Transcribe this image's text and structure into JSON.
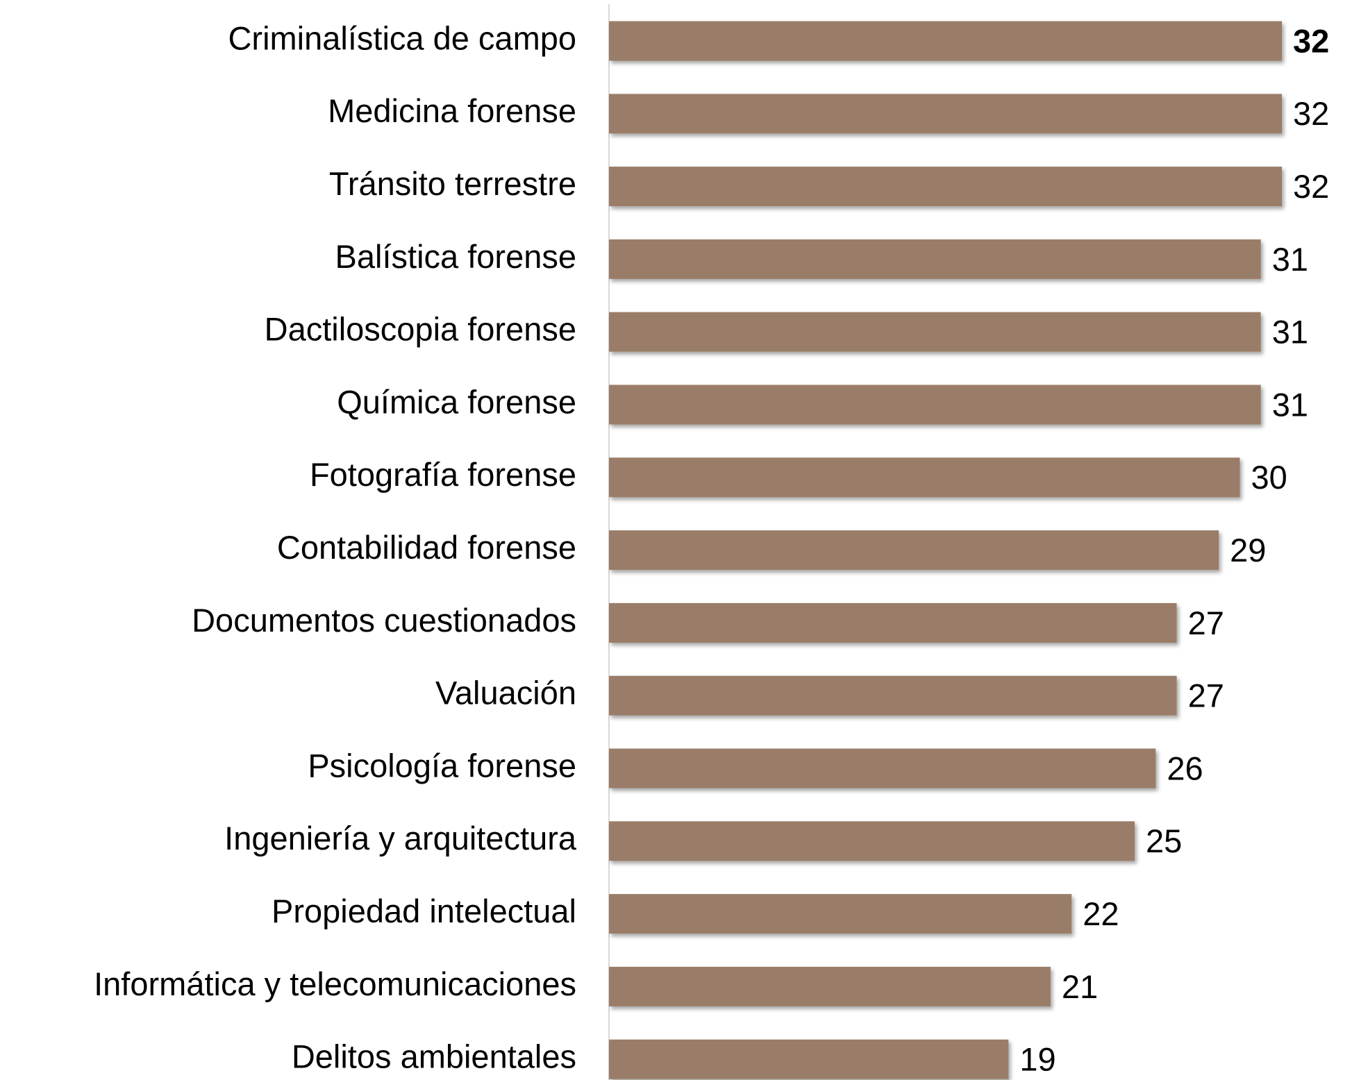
{
  "chart_data": {
    "type": "bar",
    "orientation": "horizontal",
    "categories": [
      "Criminalística de campo",
      "Medicina forense",
      "Tránsito terrestre",
      "Balística forense",
      "Dactiloscopia forense",
      "Química forense",
      "Fotografía forense",
      "Contabilidad forense",
      "Documentos cuestionados",
      "Valuación",
      "Psicología forense",
      "Ingeniería y arquitectura",
      "Propiedad intelectual",
      "Informática y telecomunicaciones",
      "Delitos ambientales"
    ],
    "values": [
      32,
      32,
      32,
      31,
      31,
      31,
      30,
      29,
      27,
      27,
      26,
      25,
      22,
      21,
      19
    ],
    "color": "#9a7d68",
    "xlim": [
      0,
      32
    ]
  }
}
